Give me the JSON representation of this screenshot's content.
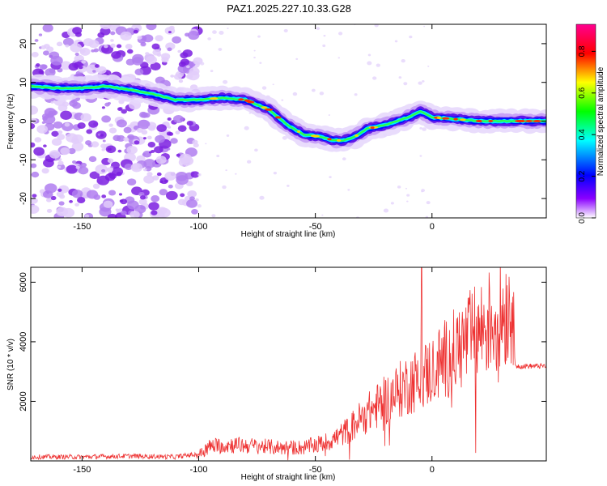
{
  "title": "PAZ1.2025.227.10.33.G28",
  "chart_data": [
    {
      "type": "heatmap",
      "xlabel": "Height of straight line (km)",
      "ylabel": "Frequency (Hz)",
      "xlim": [
        -172,
        49
      ],
      "ylim": [
        -25,
        25
      ],
      "xticks": [
        -150,
        -100,
        -50,
        0
      ],
      "yticks": [
        -20,
        -10,
        0,
        10,
        20
      ],
      "colorbar": {
        "label": "Normalized spectral amplitude",
        "range": [
          0.0,
          0.93
        ],
        "ticks": [
          0.0,
          0.2,
          0.4,
          0.6,
          0.8
        ],
        "colors": [
          "#ffffff",
          "#8a00ff",
          "#0000ff",
          "#00ffff",
          "#00ff00",
          "#ffff00",
          "#ff0000",
          "#ff0090"
        ]
      },
      "ridge": {
        "x": [
          -172,
          -160,
          -150,
          -140,
          -128,
          -120,
          -110,
          -100,
          -90,
          -80,
          -70,
          -62,
          -55,
          -48,
          -42,
          -38,
          -33,
          -28,
          -20,
          -10,
          -5,
          0,
          10,
          20,
          30,
          40,
          49
        ],
        "y": [
          9,
          8.5,
          8.5,
          9,
          8,
          7,
          5.5,
          5.5,
          6,
          5.5,
          3,
          -1,
          -3.5,
          -4,
          -5,
          -5,
          -4,
          -2,
          -1,
          1,
          2.5,
          1,
          0.5,
          0,
          0,
          0,
          0
        ]
      }
    },
    {
      "type": "line",
      "xlabel": "Height of straight line (km)",
      "ylabel": "SNR (10 * v/v)",
      "xlim": [
        -172,
        49
      ],
      "ylim": [
        0,
        6500
      ],
      "xticks": [
        -150,
        -100,
        -50,
        0
      ],
      "yticks": [
        2000,
        4000,
        6000
      ],
      "color": "#ee3333",
      "envelope": {
        "x": [
          -172,
          -150,
          -130,
          -110,
          -100,
          -95,
          -85,
          -75,
          -65,
          -55,
          -45,
          -40,
          -35,
          -30,
          -25,
          -20,
          -15,
          -10,
          -5,
          0,
          10,
          20,
          30,
          35,
          35.5,
          40,
          49
        ],
        "y": [
          150,
          150,
          180,
          150,
          250,
          550,
          600,
          550,
          500,
          500,
          700,
          900,
          1200,
          1600,
          1900,
          2200,
          2500,
          2800,
          3000,
          3300,
          4000,
          4700,
          5400,
          5700,
          3200,
          3200,
          3200
        ]
      },
      "spike": {
        "x": -4.5,
        "y": 6500
      }
    }
  ]
}
